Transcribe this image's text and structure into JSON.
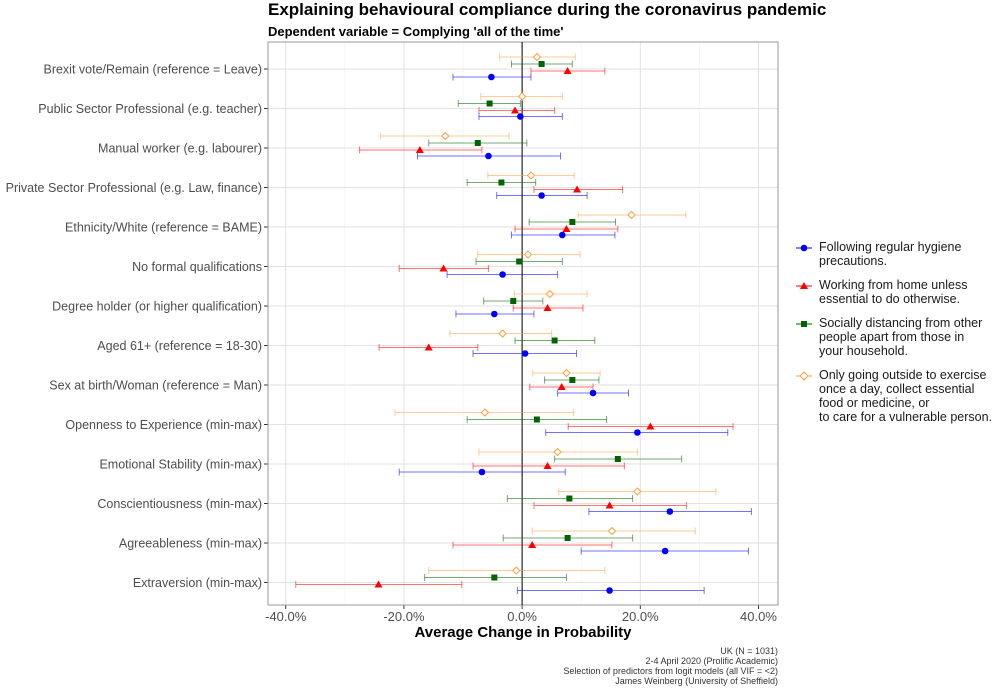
{
  "chart_data": {
    "type": "scatter",
    "title": "Explaining behavioural compliance during the coronavirus pandemic",
    "subtitle": "Dependent variable = Complying 'all of the time'",
    "xlabel": "Average Change in Probability",
    "ylabel": "",
    "xlim": [
      -43,
      43.3
    ],
    "x_ticks": [
      "-40.0%",
      "-20.0%",
      "0.0%",
      "20.0%",
      "40.0%"
    ],
    "x_tick_values": [
      -40,
      -20,
      0,
      20,
      40
    ],
    "grid": true,
    "legend_position": "right",
    "reference_line_x": 0,
    "categories": [
      "Brexit vote/Remain (reference = Leave)",
      "Public Sector Professional (e.g. teacher)",
      "Manual worker (e.g. labourer)",
      "Private Sector Professional (e.g. Law, finance)",
      "Ethnicity/White (reference = BAME)",
      "No formal qualifications",
      "Degree holder (or higher qualification)",
      "Aged 61+ (reference = 18-30)",
      "Sex at birth/Woman (reference = Man)",
      "Openness to Experience (min-max)",
      "Emotional Stability (min-max)",
      "Conscientiousness (min-max)",
      "Agreeableness (min-max)",
      "Extraversion (min-max)"
    ],
    "series": [
      {
        "name": "Following regular hygiene\nprecautions.",
        "color": "#0000ff",
        "marker": "circle",
        "estimate": [
          -5.2,
          -0.3,
          -5.7,
          3.3,
          6.8,
          -3.3,
          -4.7,
          0.5,
          12,
          19.5,
          -6.8,
          25,
          24.2,
          14.8
        ],
        "lower": [
          -11.7,
          -7.3,
          -17.7,
          -4.3,
          -1.8,
          -12.7,
          -11.2,
          -8.3,
          6,
          4,
          -20.8,
          11.3,
          10,
          -0.8
        ],
        "upper": [
          1.5,
          6.8,
          6.5,
          11,
          15.7,
          6,
          2,
          9.2,
          18,
          34.8,
          7.3,
          38.8,
          38.3,
          30.8
        ]
      },
      {
        "name": "Working from home unless\nessential to do otherwise.",
        "color": "#ff0000",
        "marker": "triangle",
        "estimate": [
          7.7,
          -1.2,
          -17.3,
          9.3,
          7.5,
          -13.3,
          4.3,
          -15.8,
          6.7,
          21.7,
          4.3,
          14.8,
          1.7,
          -24.3
        ],
        "lower": [
          1.5,
          -7.3,
          -27.5,
          2,
          -1.2,
          -20.8,
          -1.5,
          -24.2,
          1.3,
          7.8,
          -8.3,
          2,
          -11.7,
          -38.3
        ],
        "upper": [
          14,
          5.5,
          -6.8,
          17,
          16.2,
          -5.7,
          10.3,
          -7.5,
          12,
          35.7,
          17.3,
          27.8,
          15.2,
          -10.2
        ]
      },
      {
        "name": "Socially distancing from other\npeople apart from those in\nyour household.",
        "color": "#006400",
        "marker": "square",
        "estimate": [
          3.3,
          -5.5,
          -7.5,
          -3.5,
          8.5,
          -0.5,
          -1.5,
          5.5,
          8.5,
          2.5,
          16.2,
          8,
          7.7,
          -4.7
        ],
        "lower": [
          -1.8,
          -10.8,
          -15.8,
          -9.3,
          1.2,
          -7.8,
          -6.5,
          -1.2,
          3.8,
          -9.3,
          5.5,
          -2.5,
          -3.2,
          -16.5
        ],
        "upper": [
          8.5,
          -0.3,
          0.8,
          2.3,
          15.8,
          6.8,
          3.5,
          12.3,
          13,
          14.3,
          27,
          18.7,
          18.7,
          7.5
        ]
      },
      {
        "name": "Only going outside to exercise\nonce a day, collect essential\nfood or medicine, or\nto care for a vulnerable person.",
        "color": "#ffa040",
        "marker": "open-diamond",
        "estimate": [
          2.5,
          0,
          -13,
          1.5,
          18.5,
          1,
          4.7,
          -3.3,
          7.5,
          -6.3,
          6,
          19.5,
          15.2,
          -1
        ],
        "lower": [
          -3.8,
          -7,
          -24,
          -5.8,
          9.5,
          -7.5,
          -1.3,
          -12.2,
          1.8,
          -21.5,
          -7.3,
          6.2,
          1.7,
          -15.8
        ],
        "upper": [
          9,
          6.8,
          -2.2,
          8.8,
          27.7,
          9.8,
          11,
          5,
          13.2,
          8.7,
          19.5,
          32.8,
          29.3,
          14
        ]
      }
    ],
    "caption": [
      "UK (N = 1031)",
      "2-4 April 2020 (Prolific Academic)",
      "Selection of predictors from logit models (all VIF = <2)",
      "James Weinberg (University of Sheffield)"
    ]
  }
}
